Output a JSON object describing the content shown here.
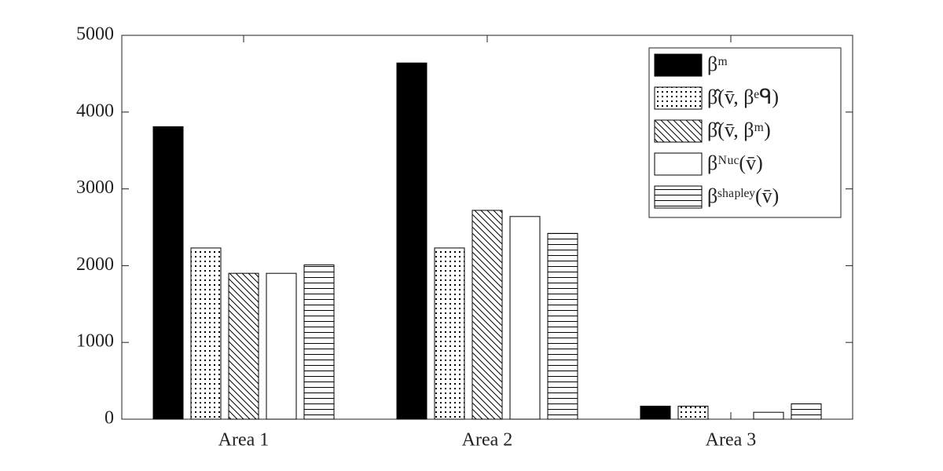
{
  "chart_data": {
    "type": "bar",
    "categories": [
      "Area 1",
      "Area 2",
      "Area 3"
    ],
    "series": [
      {
        "name": "βᵐ",
        "color": "#000000",
        "pattern": "solid",
        "values": [
          3810,
          4640,
          170
        ]
      },
      {
        "name": "β̂(v̄, βᵉᑫ)",
        "color": "#000000",
        "pattern": "dots",
        "values": [
          2230,
          2230,
          170
        ]
      },
      {
        "name": "β̂(v̄, βᵐ)",
        "color": "#000000",
        "pattern": "diagonal",
        "values": [
          1900,
          2720,
          0
        ]
      },
      {
        "name": "βᴺᵘᶜ(v̄)",
        "color": "#000000",
        "pattern": "none",
        "values": [
          1900,
          2640,
          90
        ]
      },
      {
        "name": "βˢʰᵃᵖˡᵉʸ(v̄)",
        "color": "#000000",
        "pattern": "horizontal",
        "values": [
          2010,
          2420,
          200
        ]
      }
    ],
    "ylim": [
      0,
      5000
    ],
    "yticks": [
      0,
      1000,
      2000,
      3000,
      4000,
      5000
    ],
    "grid": false,
    "legend": "upper right"
  }
}
